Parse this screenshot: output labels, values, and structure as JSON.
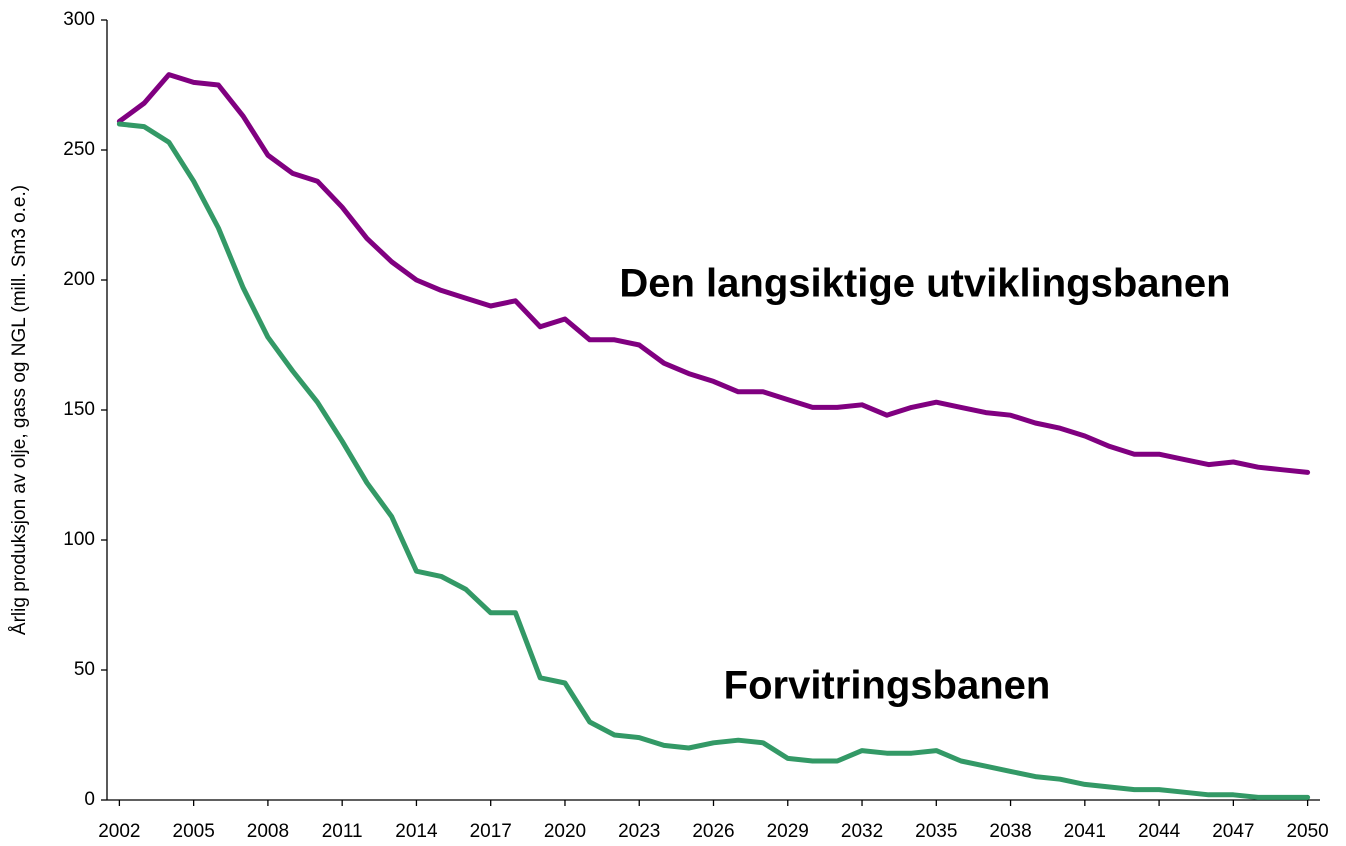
{
  "chart_data": {
    "type": "line",
    "y_label": "Årlig produksjon av olje, gass og NGL (mill. Sm3 o.e.)",
    "x": [
      2002,
      2003,
      2004,
      2005,
      2006,
      2007,
      2008,
      2009,
      2010,
      2011,
      2012,
      2013,
      2014,
      2015,
      2016,
      2017,
      2018,
      2019,
      2020,
      2021,
      2022,
      2023,
      2024,
      2025,
      2026,
      2027,
      2028,
      2029,
      2030,
      2031,
      2032,
      2033,
      2034,
      2035,
      2036,
      2037,
      2038,
      2039,
      2040,
      2041,
      2042,
      2043,
      2044,
      2045,
      2046,
      2047,
      2048,
      2049,
      2050
    ],
    "series": [
      {
        "name": "Den langsiktige utviklingsbanen",
        "color": "#800080",
        "values": [
          261,
          268,
          279,
          276,
          275,
          263,
          248,
          241,
          238,
          228,
          216,
          207,
          200,
          196,
          193,
          190,
          192,
          182,
          185,
          177,
          177,
          175,
          168,
          164,
          161,
          157,
          157,
          154,
          151,
          151,
          152,
          148,
          151,
          153,
          151,
          149,
          148,
          145,
          143,
          140,
          136,
          133,
          133,
          131,
          129,
          130,
          128,
          127,
          126
        ]
      },
      {
        "name": "Forvitringsbanen",
        "color": "#339966",
        "values": [
          260,
          259,
          253,
          238,
          220,
          197,
          178,
          165,
          153,
          138,
          122,
          109,
          88,
          86,
          81,
          72,
          72,
          47,
          45,
          30,
          25,
          24,
          21,
          20,
          22,
          23,
          22,
          16,
          15,
          15,
          19,
          18,
          18,
          19,
          15,
          13,
          11,
          9,
          8,
          6,
          5,
          4,
          4,
          3,
          2,
          2,
          1,
          1,
          1
        ]
      }
    ],
    "xlim": [
      2001.5,
      2050.5
    ],
    "xticks": [
      2002,
      2005,
      2008,
      2011,
      2014,
      2017,
      2020,
      2023,
      2026,
      2029,
      2032,
      2035,
      2038,
      2041,
      2044,
      2047,
      2050
    ],
    "ylim": [
      0,
      300
    ],
    "yticks": [
      0,
      50,
      100,
      150,
      200,
      250,
      300
    ],
    "grid": false
  }
}
